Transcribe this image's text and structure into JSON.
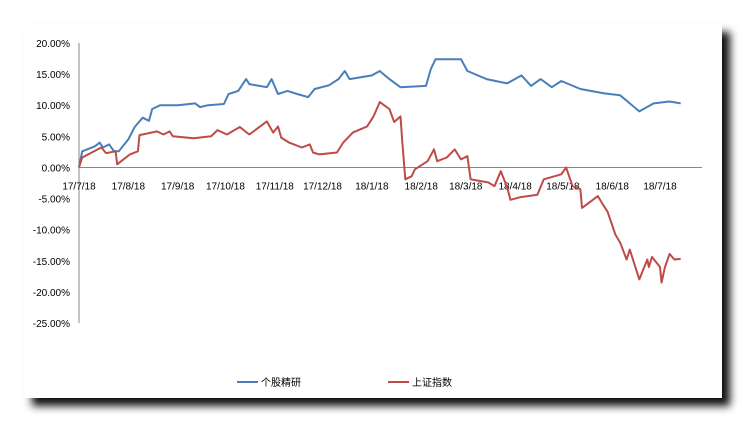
{
  "chart_data": {
    "type": "line",
    "title": "",
    "xlabel": "",
    "ylabel": "",
    "ylim": [
      -25,
      20
    ],
    "y_tick_labels": [
      "20.00%",
      "15.00%",
      "10.00%",
      "5.00%",
      "0.00%",
      "-5.00%",
      "-10.00%",
      "-15.00%",
      "-20.00%",
      "-25.00%"
    ],
    "x_tick_labels": [
      "17/7/18",
      "17/8/18",
      "17/9/18",
      "17/10/18",
      "17/11/18",
      "17/12/18",
      "18/1/18",
      "18/2/18",
      "18/3/18",
      "18/4/18",
      "18/5/18",
      "18/6/18",
      "18/7/18"
    ],
    "x_tick_dates": [
      "2017-07-18",
      "2017-08-18",
      "2017-09-18",
      "2017-10-18",
      "2017-11-18",
      "2017-12-18",
      "2018-01-18",
      "2018-02-18",
      "2018-03-18",
      "2018-04-18",
      "2018-05-18",
      "2018-06-18",
      "2018-07-18"
    ],
    "grid": false,
    "legend_position": "bottom",
    "series": [
      {
        "name": "个股精研",
        "color": "#4a7ebb",
        "points": [
          [
            "2017-07-18",
            0
          ],
          [
            "2017-07-20",
            2.6
          ],
          [
            "2017-07-28",
            3.4
          ],
          [
            "2017-07-31",
            4.0
          ],
          [
            "2017-08-02",
            3.2
          ],
          [
            "2017-08-06",
            3.7
          ],
          [
            "2017-08-09",
            2.6
          ],
          [
            "2017-08-12",
            2.6
          ],
          [
            "2017-08-18",
            4.5
          ],
          [
            "2017-08-22",
            6.5
          ],
          [
            "2017-08-27",
            8.0
          ],
          [
            "2017-08-31",
            7.5
          ],
          [
            "2017-09-02",
            9.4
          ],
          [
            "2017-09-07",
            10.0
          ],
          [
            "2017-09-18",
            10.0
          ],
          [
            "2017-09-29",
            10.3
          ],
          [
            "2017-10-02",
            9.7
          ],
          [
            "2017-10-07",
            10.0
          ],
          [
            "2017-10-17",
            10.2
          ],
          [
            "2017-10-20",
            11.8
          ],
          [
            "2017-10-26",
            12.3
          ],
          [
            "2017-10-31",
            14.2
          ],
          [
            "2017-11-02",
            13.4
          ],
          [
            "2017-11-13",
            12.9
          ],
          [
            "2017-11-16",
            14.2
          ],
          [
            "2017-11-20",
            11.8
          ],
          [
            "2017-11-26",
            12.3
          ],
          [
            "2017-12-02",
            11.8
          ],
          [
            "2017-12-09",
            11.3
          ],
          [
            "2017-12-13",
            12.6
          ],
          [
            "2017-12-22",
            13.2
          ],
          [
            "2017-12-28",
            14.2
          ],
          [
            "2018-01-01",
            15.5
          ],
          [
            "2018-01-04",
            14.2
          ],
          [
            "2018-01-18",
            14.8
          ],
          [
            "2018-01-23",
            15.5
          ],
          [
            "2018-01-29",
            14.2
          ],
          [
            "2018-02-05",
            12.9
          ],
          [
            "2018-02-21",
            13.1
          ],
          [
            "2018-02-24",
            15.8
          ],
          [
            "2018-02-27",
            17.4
          ],
          [
            "2018-03-15",
            17.4
          ],
          [
            "2018-03-19",
            15.5
          ],
          [
            "2018-03-31",
            14.2
          ],
          [
            "2018-04-13",
            13.5
          ],
          [
            "2018-04-22",
            14.8
          ],
          [
            "2018-04-28",
            13.1
          ],
          [
            "2018-05-04",
            14.2
          ],
          [
            "2018-05-11",
            12.9
          ],
          [
            "2018-05-17",
            13.9
          ],
          [
            "2018-05-29",
            12.6
          ],
          [
            "2018-06-13",
            11.9
          ],
          [
            "2018-06-23",
            11.6
          ],
          [
            "2018-06-29",
            10.3
          ],
          [
            "2018-07-05",
            9.0
          ],
          [
            "2018-07-14",
            10.3
          ],
          [
            "2018-07-24",
            10.6
          ],
          [
            "2018-07-31",
            10.3
          ]
        ]
      },
      {
        "name": "上证指数",
        "color": "#be4b48",
        "points": [
          [
            "2017-07-18",
            0
          ],
          [
            "2017-07-20",
            1.6
          ],
          [
            "2017-08-01",
            3.2
          ],
          [
            "2017-08-04",
            2.3
          ],
          [
            "2017-08-10",
            2.6
          ],
          [
            "2017-08-11",
            0.5
          ],
          [
            "2017-08-19",
            2.1
          ],
          [
            "2017-08-24",
            2.6
          ],
          [
            "2017-08-25",
            5.2
          ],
          [
            "2017-09-05",
            5.8
          ],
          [
            "2017-09-09",
            5.3
          ],
          [
            "2017-09-13",
            5.8
          ],
          [
            "2017-09-15",
            5.0
          ],
          [
            "2017-09-28",
            4.7
          ],
          [
            "2017-10-09",
            5.0
          ],
          [
            "2017-10-13",
            6.0
          ],
          [
            "2017-10-19",
            5.3
          ],
          [
            "2017-10-27",
            6.5
          ],
          [
            "2017-11-02",
            5.3
          ],
          [
            "2017-11-13",
            7.4
          ],
          [
            "2017-11-17",
            5.6
          ],
          [
            "2017-11-20",
            6.6
          ],
          [
            "2017-11-22",
            4.8
          ],
          [
            "2017-11-27",
            4.0
          ],
          [
            "2017-12-05",
            3.2
          ],
          [
            "2017-12-10",
            3.7
          ],
          [
            "2017-12-12",
            2.4
          ],
          [
            "2017-12-16",
            2.1
          ],
          [
            "2017-12-27",
            2.4
          ],
          [
            "2017-12-31",
            4.0
          ],
          [
            "2018-01-06",
            5.6
          ],
          [
            "2018-01-15",
            6.6
          ],
          [
            "2018-01-19",
            8.2
          ],
          [
            "2018-01-23",
            10.5
          ],
          [
            "2018-01-29",
            9.4
          ],
          [
            "2018-02-01",
            7.3
          ],
          [
            "2018-02-05",
            8.2
          ],
          [
            "2018-02-06",
            4.5
          ],
          [
            "2018-02-08",
            -1.9
          ],
          [
            "2018-02-12",
            -1.4
          ],
          [
            "2018-02-14",
            -0.3
          ],
          [
            "2018-02-22",
            1.0
          ],
          [
            "2018-02-26",
            2.9
          ],
          [
            "2018-02-28",
            1.0
          ],
          [
            "2018-03-06",
            1.6
          ],
          [
            "2018-03-11",
            2.9
          ],
          [
            "2018-03-15",
            1.3
          ],
          [
            "2018-03-19",
            1.8
          ],
          [
            "2018-03-21",
            -1.9
          ],
          [
            "2018-04-01",
            -2.4
          ],
          [
            "2018-04-05",
            -3.0
          ],
          [
            "2018-04-09",
            -0.6
          ],
          [
            "2018-04-13",
            -3.2
          ],
          [
            "2018-04-15",
            -5.2
          ],
          [
            "2018-04-21",
            -4.8
          ],
          [
            "2018-05-02",
            -4.4
          ],
          [
            "2018-05-06",
            -1.9
          ],
          [
            "2018-05-17",
            -1.1
          ],
          [
            "2018-05-20",
            0.0
          ],
          [
            "2018-05-24",
            -3.0
          ],
          [
            "2018-05-29",
            -3.5
          ],
          [
            "2018-05-30",
            -6.5
          ],
          [
            "2018-06-09",
            -4.6
          ],
          [
            "2018-06-12",
            -5.9
          ],
          [
            "2018-06-15",
            -7.1
          ],
          [
            "2018-06-20",
            -10.8
          ],
          [
            "2018-06-23",
            -12.1
          ],
          [
            "2018-06-27",
            -14.8
          ],
          [
            "2018-06-29",
            -13.2
          ],
          [
            "2018-07-05",
            -18.0
          ],
          [
            "2018-07-10",
            -14.8
          ],
          [
            "2018-07-11",
            -16.0
          ],
          [
            "2018-07-13",
            -14.4
          ],
          [
            "2018-07-18",
            -16.0
          ],
          [
            "2018-07-19",
            -18.5
          ],
          [
            "2018-07-21",
            -16.1
          ],
          [
            "2018-07-24",
            -13.9
          ],
          [
            "2018-07-27",
            -14.8
          ],
          [
            "2018-07-31",
            -14.7
          ]
        ]
      }
    ]
  }
}
